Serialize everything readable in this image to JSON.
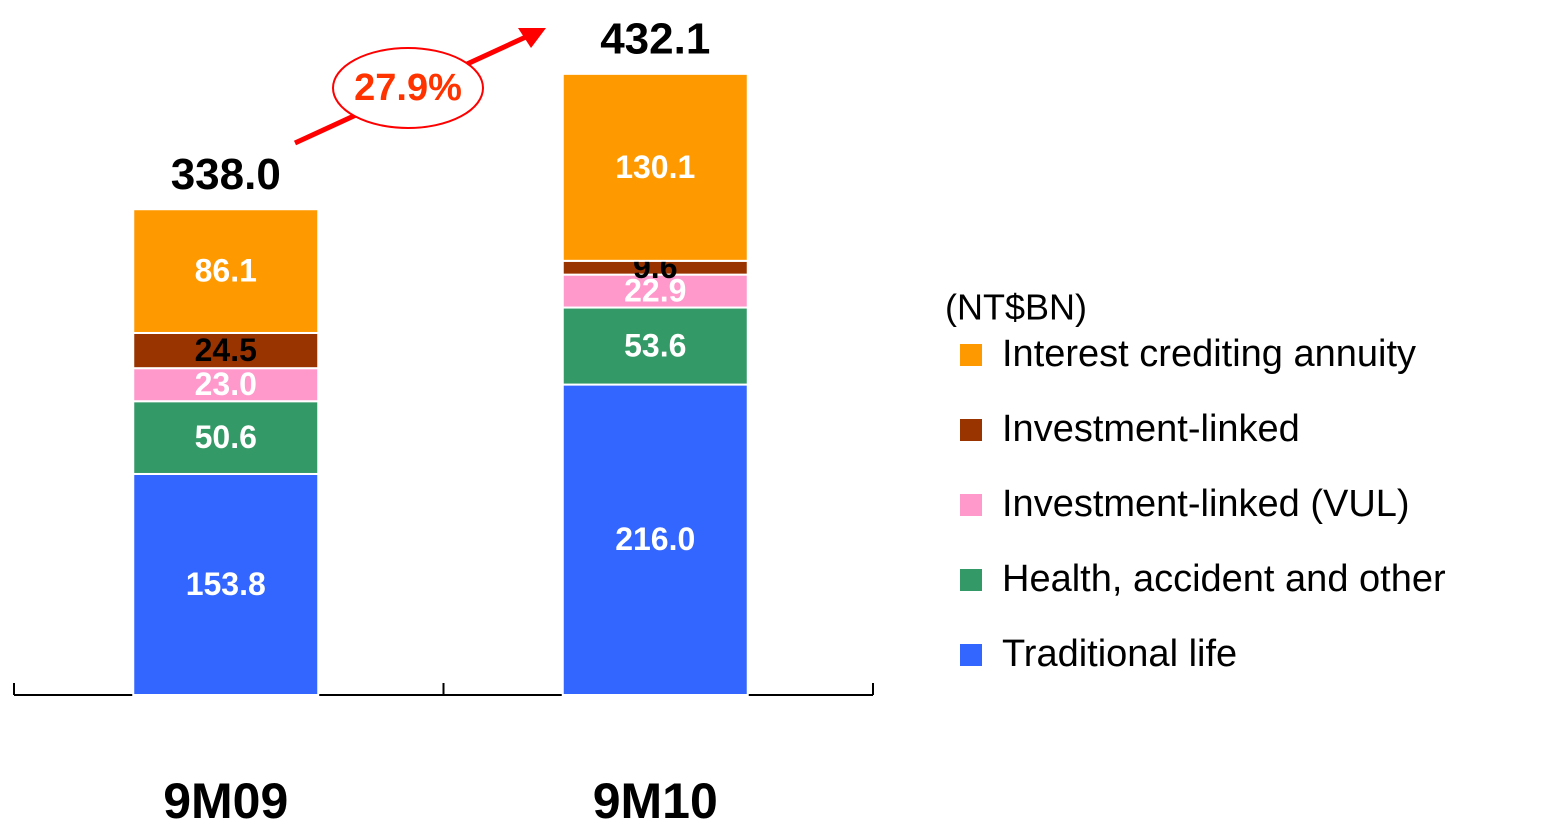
{
  "chart_data": {
    "type": "stacked_bar",
    "categories": [
      "9M09",
      "9M10"
    ],
    "series": [
      {
        "name": "Traditional life",
        "color": "#3366FF",
        "label_color": "#ffffff",
        "values": [
          153.8,
          216.0
        ],
        "value_labels": [
          "153.8",
          "216.0"
        ]
      },
      {
        "name": "Health, accident and other",
        "color": "#339966",
        "label_color": "#ffffff",
        "values": [
          50.6,
          53.6
        ],
        "value_labels": [
          "50.6",
          "53.6"
        ]
      },
      {
        "name": "Investment-linked (VUL)",
        "color": "#FF99CC",
        "label_color": "#ffffff",
        "values": [
          23.0,
          22.9
        ],
        "value_labels": [
          "23.0",
          "22.9"
        ]
      },
      {
        "name": "Investment-linked",
        "color": "#993300",
        "label_color": "#000000",
        "values": [
          24.5,
          9.6
        ],
        "value_labels": [
          "24.5",
          "9.6"
        ]
      },
      {
        "name": "Interest crediting annuity",
        "color": "#FF9900",
        "label_color": "#ffffff",
        "values": [
          86.1,
          130.1
        ],
        "value_labels": [
          "86.1",
          "130.1"
        ]
      }
    ],
    "totals": [
      338.0,
      432.1
    ],
    "total_labels": [
      "338.0",
      "432.1"
    ],
    "annotation": "27.9%",
    "unit_label": "(NT$BN)"
  }
}
